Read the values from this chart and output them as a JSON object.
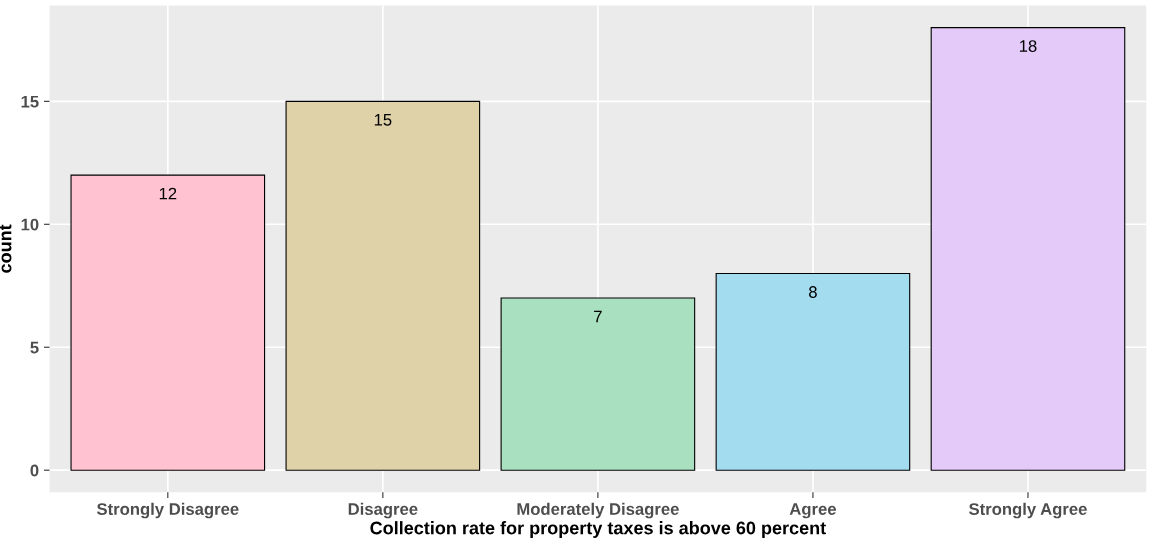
{
  "chart_data": {
    "type": "bar",
    "xlabel": "Collection rate for property taxes is above 60 percent",
    "ylabel": "count",
    "categories": [
      "Strongly Disagree",
      "Disagree",
      "Moderately Disagree",
      "Agree",
      "Strongly Agree"
    ],
    "values": [
      12,
      15,
      7,
      8,
      18
    ],
    "colors": [
      "#ffc2d0",
      "#e0d2a8",
      "#a8e0c0",
      "#a3dbef",
      "#e3caf9"
    ],
    "ylim": [
      -0.9,
      18.9
    ],
    "yticks": [
      0,
      5,
      10,
      15
    ],
    "grid": true,
    "data_labels": true
  }
}
